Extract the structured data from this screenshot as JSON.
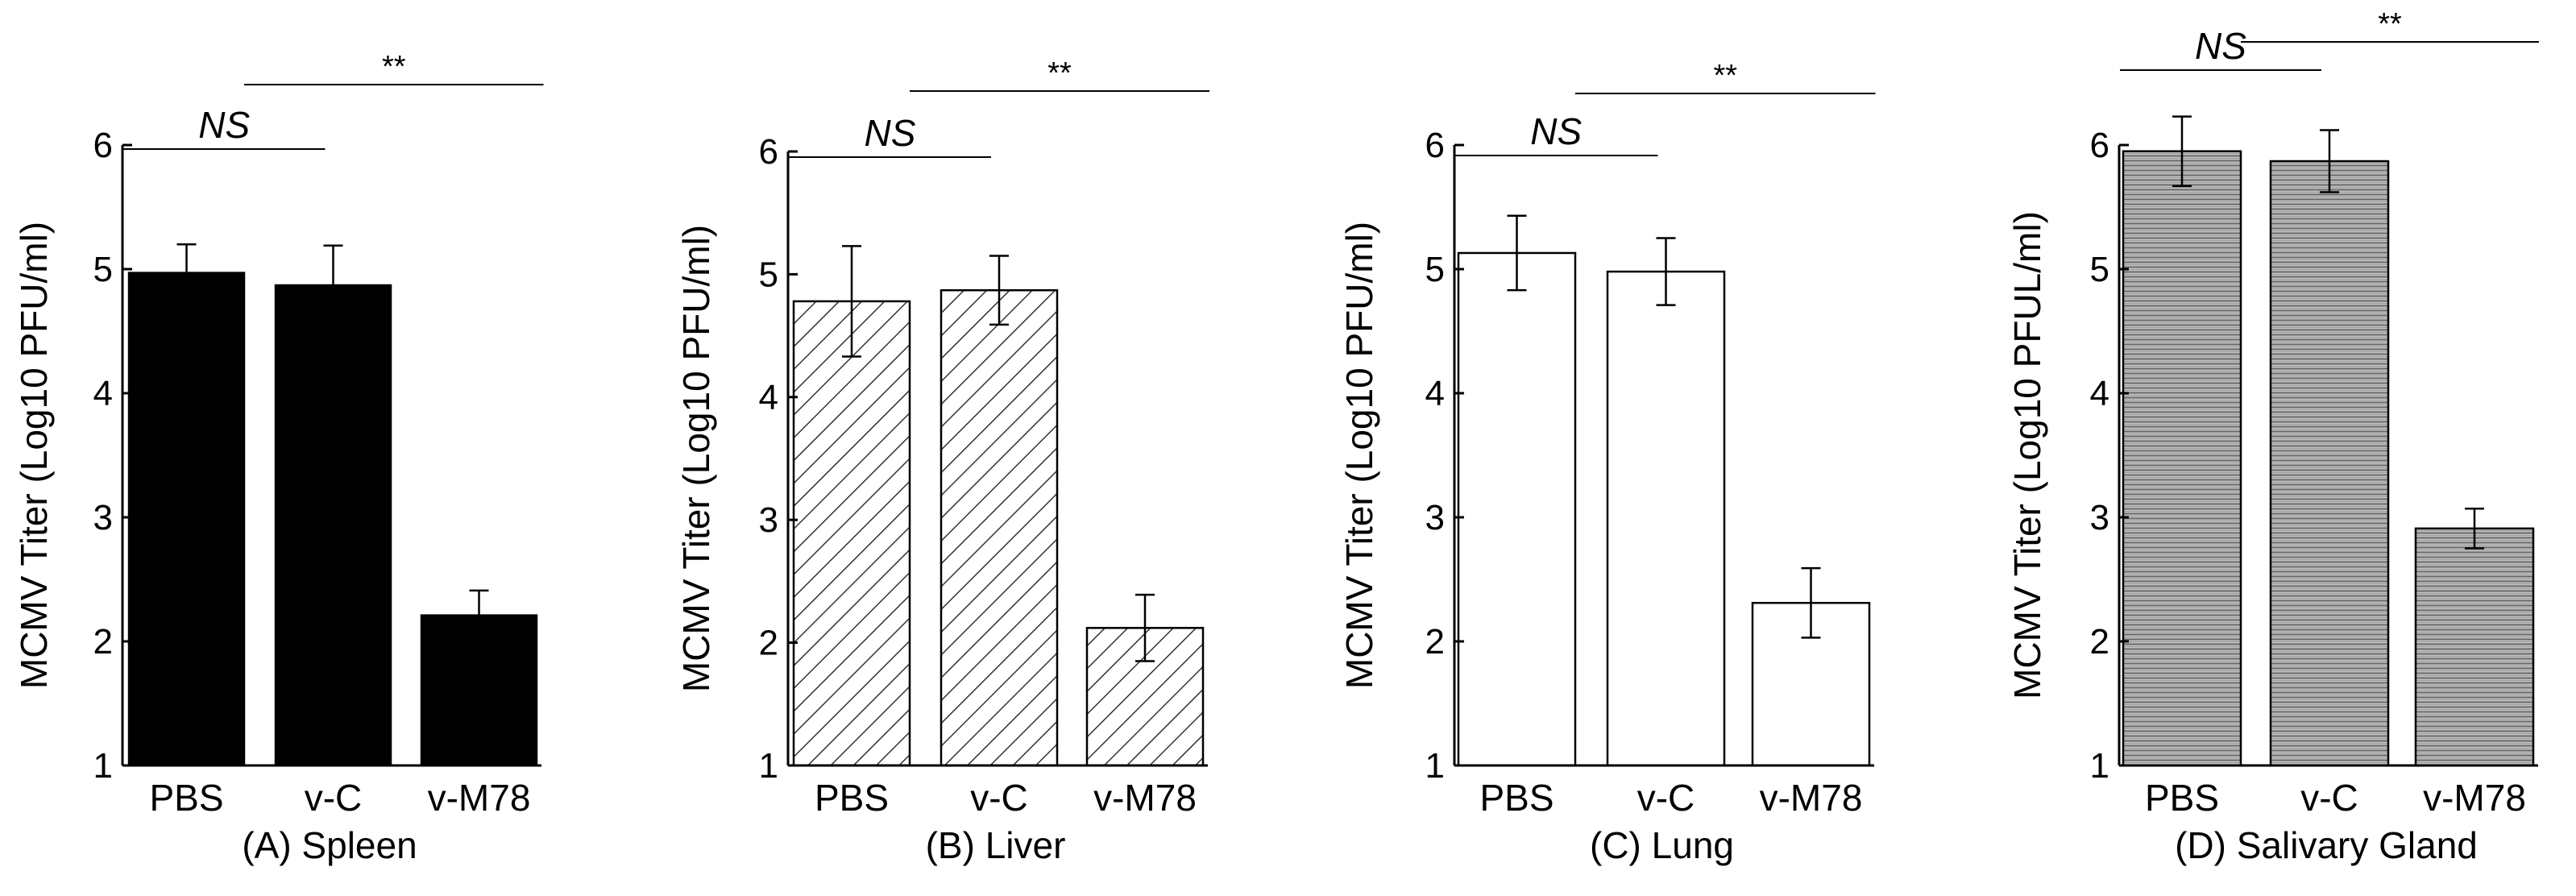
{
  "colors": {
    "ink": "#000000",
    "background": "#ffffff"
  },
  "chart_data": [
    {
      "type": "bar",
      "panel": "A",
      "caption": "(A) Spleen",
      "ylabel": "MCMV Titer (Log10  PFU/ml)",
      "categories": [
        "PBS",
        "v-C",
        "v-M78"
      ],
      "values": [
        4.97,
        4.87,
        2.21
      ],
      "errors": [
        0.23,
        0.32,
        0.2
      ],
      "ylim": [
        1,
        6
      ],
      "yticks": [
        1,
        2,
        3,
        4,
        5,
        6
      ],
      "fill": "solid",
      "significance": [
        {
          "from": 0,
          "to": 1,
          "label": "NS"
        },
        {
          "from": 0.5,
          "to": 2,
          "label": "**"
        }
      ]
    },
    {
      "type": "bar",
      "panel": "B",
      "caption": "(B) Liver",
      "ylabel": "MCMV Titer (Log10  PFU/ml)",
      "categories": [
        "PBS",
        "v-C",
        "v-M78"
      ],
      "values": [
        4.78,
        4.87,
        2.12
      ],
      "errors": [
        0.45,
        0.28,
        0.27
      ],
      "ylim": [
        1,
        6
      ],
      "yticks": [
        1,
        2,
        3,
        4,
        5,
        6
      ],
      "fill": "diagonal-hatch",
      "significance": [
        {
          "from": 0,
          "to": 1,
          "label": "NS"
        },
        {
          "from": 0.5,
          "to": 2,
          "label": "**"
        }
      ]
    },
    {
      "type": "bar",
      "panel": "C",
      "caption": "(C) Lung",
      "ylabel": "MCMV Titer (Log10 PFU/ml)",
      "categories": [
        "PBS",
        "v-C",
        "v-M78"
      ],
      "values": [
        5.13,
        4.98,
        2.31
      ],
      "errors": [
        0.3,
        0.27,
        0.28
      ],
      "ylim": [
        1,
        6
      ],
      "yticks": [
        1,
        2,
        3,
        4,
        5,
        6
      ],
      "fill": "white",
      "significance": [
        {
          "from": 0,
          "to": 1,
          "label": "NS"
        },
        {
          "from": 0.5,
          "to": 2,
          "label": "**"
        }
      ]
    },
    {
      "type": "bar",
      "panel": "D",
      "caption": "(D) Salivary Gland",
      "ylabel": "MCMV Titer (Log10 PFUL/ml)",
      "categories": [
        "PBS",
        "v-C",
        "v-M78"
      ],
      "values": [
        5.95,
        5.87,
        2.91
      ],
      "errors": [
        0.28,
        0.25,
        0.16
      ],
      "ylim": [
        1,
        6
      ],
      "yticks": [
        1,
        2,
        3,
        4,
        5,
        6
      ],
      "fill": "horizontal-fine",
      "significance": [
        {
          "from": 0,
          "to": 1,
          "label": "NS"
        },
        {
          "from": 0.5,
          "to": 2,
          "label": "**"
        }
      ]
    }
  ]
}
